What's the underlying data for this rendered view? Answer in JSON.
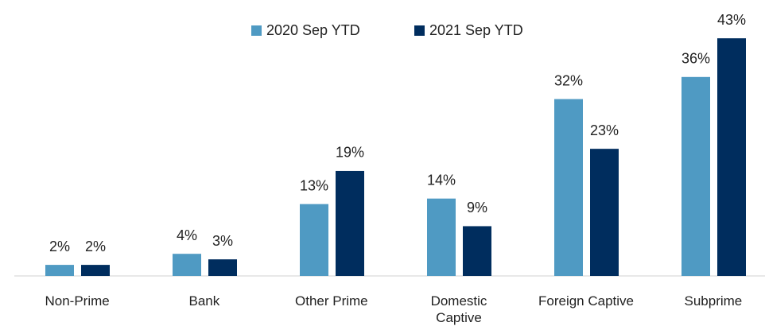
{
  "chart_data": {
    "type": "bar",
    "categories": [
      "Non-Prime",
      "Bank",
      "Other Prime",
      "Domestic Captive",
      "Foreign Captive",
      "Subprime"
    ],
    "series": [
      {
        "name": "2020 Sep YTD",
        "color": "#4f9ac3",
        "values": [
          2,
          4,
          13,
          14,
          32,
          36
        ],
        "value_labels": [
          "2%",
          "4%",
          "13%",
          "14%",
          "32%",
          "36%"
        ]
      },
      {
        "name": "2021 Sep YTD",
        "color": "#002d5e",
        "values": [
          2,
          3,
          19,
          9,
          23,
          43
        ],
        "value_labels": [
          "2%",
          "3%",
          "19%",
          "9%",
          "23%",
          "43%"
        ]
      }
    ],
    "legend": "top"
  }
}
